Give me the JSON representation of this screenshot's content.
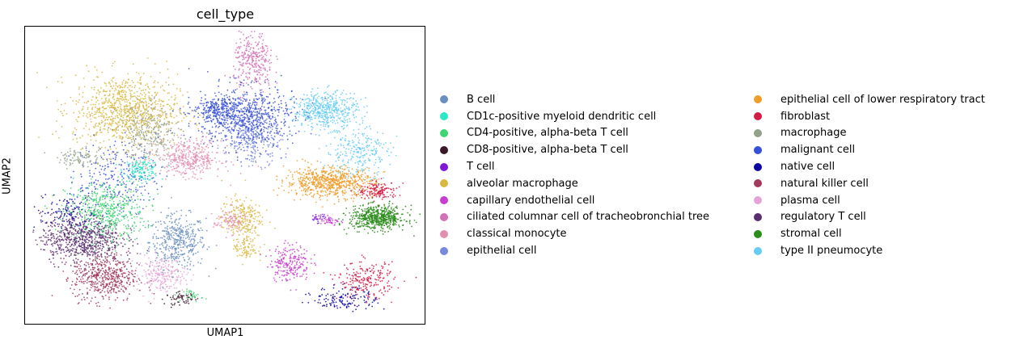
{
  "chart_data": {
    "type": "scatter",
    "title": "cell_type",
    "xlabel": "UMAP1",
    "ylabel": "UMAP2",
    "xlim": [
      0,
      100
    ],
    "ylim": [
      0,
      100
    ],
    "grid": false,
    "ticks": "none",
    "legend_position": "right, two columns",
    "legend_title": "",
    "series": [
      {
        "name": "B cell",
        "color": "#6a8fbf",
        "clusters": [
          {
            "x": 38,
            "y": 28,
            "sx": 3.5,
            "sy": 4.5,
            "n": 420
          }
        ]
      },
      {
        "name": "CD1c-positive myeloid dendritic cell",
        "color": "#2ee6c8",
        "clusters": [
          {
            "x": 29,
            "y": 52,
            "sx": 2.2,
            "sy": 1.8,
            "n": 140
          }
        ]
      },
      {
        "name": "CD4-positive, alpha-beta T cell",
        "color": "#3ed472",
        "clusters": [
          {
            "x": 20,
            "y": 38,
            "sx": 5,
            "sy": 5,
            "n": 500
          },
          {
            "x": 42,
            "y": 10,
            "sx": 1.2,
            "sy": 1,
            "n": 30
          }
        ]
      },
      {
        "name": "CD8-positive, alpha-beta T cell",
        "color": "#3a1a2a",
        "clusters": [
          {
            "x": 39,
            "y": 9,
            "sx": 2,
            "sy": 1,
            "n": 60
          }
        ]
      },
      {
        "name": "T cell",
        "color": "#8018d8",
        "clusters": [
          {
            "x": 73,
            "y": 36,
            "sx": 1,
            "sy": 0.8,
            "n": 30
          }
        ]
      },
      {
        "name": "alveolar macrophage",
        "color": "#d9b842",
        "clusters": [
          {
            "x": 25,
            "y": 72,
            "sx": 6.5,
            "sy": 6,
            "n": 900
          },
          {
            "x": 54,
            "y": 36,
            "sx": 2.5,
            "sy": 3.5,
            "n": 220
          },
          {
            "x": 55,
            "y": 26,
            "sx": 1.5,
            "sy": 2.5,
            "n": 90
          }
        ]
      },
      {
        "name": "capillary endothelial cell",
        "color": "#c83ecf",
        "clusters": [
          {
            "x": 66,
            "y": 21,
            "sx": 2.5,
            "sy": 3,
            "n": 220
          },
          {
            "x": 76,
            "y": 35,
            "sx": 1.2,
            "sy": 1,
            "n": 40
          }
        ]
      },
      {
        "name": "ciliated columnar cell of tracheobronchial tree",
        "color": "#d271b6",
        "clusters": [
          {
            "x": 57,
            "y": 88,
            "sx": 2.5,
            "sy": 5,
            "n": 300
          }
        ]
      },
      {
        "name": "classical monocyte",
        "color": "#e38fb1",
        "clusters": [
          {
            "x": 41,
            "y": 56,
            "sx": 4,
            "sy": 3,
            "n": 400
          },
          {
            "x": 51,
            "y": 35,
            "sx": 2,
            "sy": 2,
            "n": 100
          }
        ]
      },
      {
        "name": "epithelial cell",
        "color": "#7888dc",
        "clusters": [
          {
            "x": 57,
            "y": 62,
            "sx": 3.5,
            "sy": 4,
            "n": 260
          }
        ]
      },
      {
        "name": "epithelial cell of lower respiratory tract",
        "color": "#ef9e2c",
        "clusters": [
          {
            "x": 76,
            "y": 48,
            "sx": 5.5,
            "sy": 2.5,
            "n": 700
          }
        ]
      },
      {
        "name": "fibroblast",
        "color": "#d31b45",
        "clusters": [
          {
            "x": 88,
            "y": 45,
            "sx": 2.5,
            "sy": 1.5,
            "n": 150
          },
          {
            "x": 85,
            "y": 15,
            "sx": 3.5,
            "sy": 3,
            "n": 220
          }
        ]
      },
      {
        "name": "macrophage",
        "color": "#93a18a",
        "clusters": [
          {
            "x": 31,
            "y": 64,
            "sx": 4,
            "sy": 5,
            "n": 300
          },
          {
            "x": 14,
            "y": 56,
            "sx": 3,
            "sy": 1.5,
            "n": 100
          }
        ]
      },
      {
        "name": "malignant cell",
        "color": "#3650d8",
        "clusters": [
          {
            "x": 55,
            "y": 70,
            "sx": 6,
            "sy": 5,
            "n": 700
          },
          {
            "x": 48,
            "y": 72,
            "sx": 3,
            "sy": 2,
            "n": 200
          },
          {
            "x": 23,
            "y": 50,
            "sx": 5,
            "sy": 6,
            "n": 250
          }
        ]
      },
      {
        "name": "native cell",
        "color": "#0c06a0",
        "clusters": [
          {
            "x": 80,
            "y": 9,
            "sx": 4,
            "sy": 2,
            "n": 140
          },
          {
            "x": 11,
            "y": 38,
            "sx": 4,
            "sy": 3,
            "n": 120
          }
        ]
      },
      {
        "name": "natural killer cell",
        "color": "#a13a5c",
        "clusters": [
          {
            "x": 20,
            "y": 16,
            "sx": 4,
            "sy": 4,
            "n": 500
          }
        ]
      },
      {
        "name": "plasma cell",
        "color": "#e6a4d6",
        "clusters": [
          {
            "x": 34,
            "y": 17,
            "sx": 3,
            "sy": 3,
            "n": 220
          }
        ]
      },
      {
        "name": "regulatory T cell",
        "color": "#5a2d6e",
        "clusters": [
          {
            "x": 14,
            "y": 29,
            "sx": 5,
            "sy": 4,
            "n": 700
          }
        ]
      },
      {
        "name": "stromal cell",
        "color": "#2a8c1a",
        "clusters": [
          {
            "x": 88,
            "y": 36,
            "sx": 3.5,
            "sy": 2,
            "n": 600
          }
        ]
      },
      {
        "name": "type II pneumocyte",
        "color": "#66ccf4",
        "clusters": [
          {
            "x": 75,
            "y": 72,
            "sx": 4,
            "sy": 3,
            "n": 500
          },
          {
            "x": 83,
            "y": 58,
            "sx": 4,
            "sy": 4,
            "n": 250
          }
        ]
      }
    ]
  }
}
